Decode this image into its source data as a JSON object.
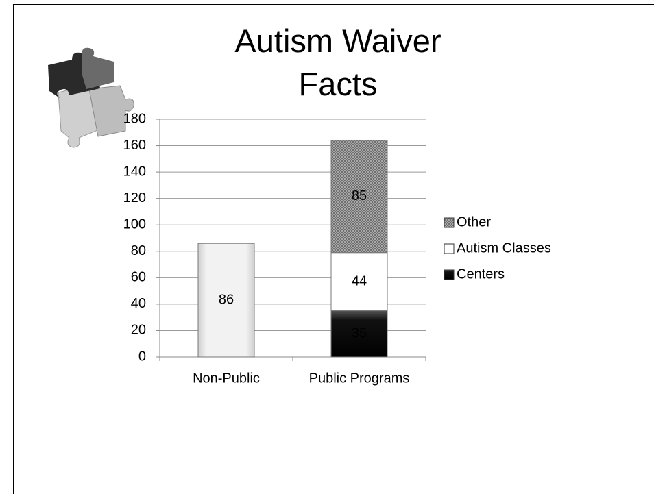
{
  "chart_data": {
    "type": "bar",
    "stacked": true,
    "title": "Autism Waiver Facts",
    "categories": [
      "Non-Public",
      "Public Programs"
    ],
    "series": [
      {
        "color": "#e4e4e4",
        "values": [
          86,
          null
        ]
      },
      {
        "name": "Centers",
        "color": "#111111",
        "values": [
          null,
          35
        ]
      },
      {
        "name": "Autism Classes",
        "color": "#ffffff",
        "values": [
          null,
          44
        ]
      },
      {
        "name": "Other",
        "color": "#9a9a9a",
        "values": [
          null,
          85
        ]
      }
    ],
    "ylim": [
      0,
      180
    ],
    "yticks": [
      0,
      20,
      40,
      60,
      80,
      100,
      120,
      140,
      160,
      180
    ],
    "grid": true,
    "legend": "right"
  }
}
